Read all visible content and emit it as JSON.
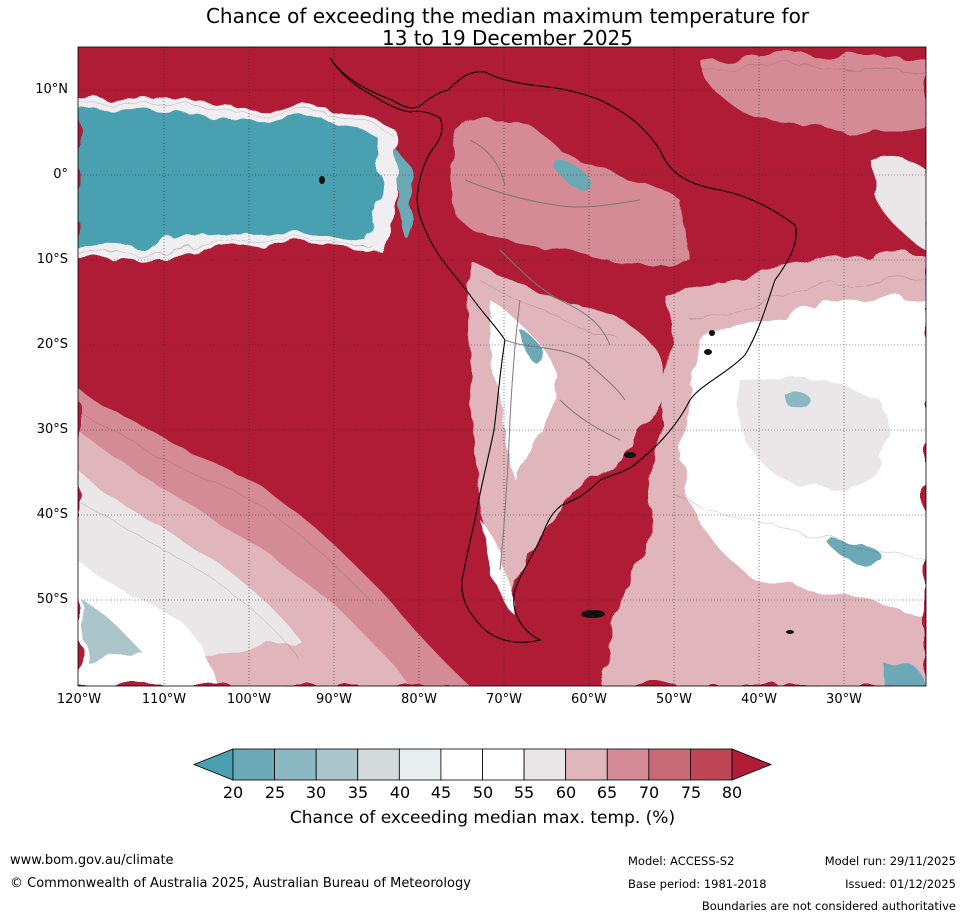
{
  "title": {
    "line1": "Chance of exceeding the median maximum temperature for",
    "line2": "13 to 19 December 2025"
  },
  "map": {
    "lat_labels": [
      "10°N",
      "0°",
      "10°S",
      "20°S",
      "30°S",
      "40°S",
      "50°S"
    ],
    "lon_labels": [
      "120°W",
      "110°W",
      "100°W",
      "90°W",
      "80°W",
      "70°W",
      "60°W",
      "50°W",
      "40°W",
      "30°W"
    ],
    "background_color": "#b01b36"
  },
  "colorbar": {
    "ticks": [
      "20",
      "25",
      "30",
      "35",
      "40",
      "45",
      "50",
      "55",
      "60",
      "65",
      "70",
      "75",
      "80"
    ],
    "colors": [
      "#4aa0b0",
      "#6ca9b6",
      "#8cb8c4",
      "#abc6cb",
      "#d4dadb",
      "#e9eff1",
      "#ffffff",
      "#ffffff",
      "#ebe7e9",
      "#e1b5bc",
      "#d48b95",
      "#c76a76",
      "#bf4657",
      "#b01b36"
    ],
    "label": "Chance of exceeding median max. temp. (%)"
  },
  "footer": {
    "website": "www.bom.gov.au/climate",
    "copyright": "© Commonwealth of Australia 2025, Australian Bureau of Meteorology",
    "model": "Model: ACCESS-S2",
    "base_period": "Base period: 1981-2018",
    "model_run": "Model run: 29/11/2025",
    "issued": "Issued: 01/12/2025",
    "boundaries": "Boundaries are not considered authoritative"
  }
}
